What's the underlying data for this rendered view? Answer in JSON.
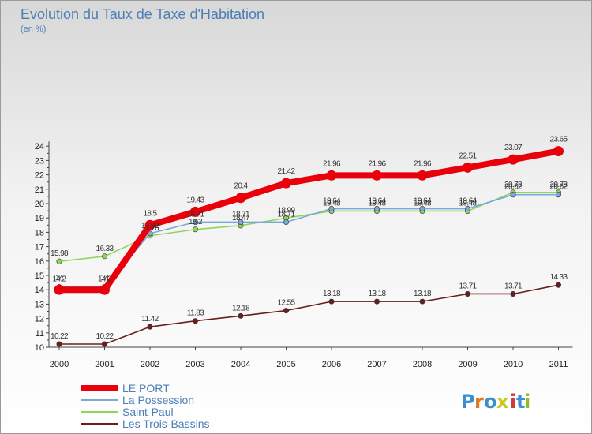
{
  "chart_data": {
    "type": "line",
    "title": "Evolution du Taux de Taxe d'Habitation",
    "subtitle": "(en %)",
    "x": [
      "2000",
      "2001",
      "2002",
      "2003",
      "2004",
      "2005",
      "2006",
      "2007",
      "2008",
      "2009",
      "2010",
      "2011"
    ],
    "ylim": [
      10,
      24
    ],
    "yticks": [
      "10",
      "11",
      "12",
      "13",
      "14",
      "15",
      "16",
      "17",
      "18",
      "19",
      "20",
      "21",
      "22",
      "23",
      "24"
    ],
    "grid": false,
    "legend_position": "bottom-left",
    "series": [
      {
        "name": "Les Trois-Bassins",
        "color": "#6b1e1e",
        "values": [
          10.22,
          10.22,
          11.42,
          11.83,
          12.18,
          12.55,
          13.18,
          13.18,
          13.18,
          13.71,
          13.71,
          14.33
        ],
        "labels": [
          "10.22",
          "10.22",
          "11.42",
          "11.83",
          "12.18",
          "12.55",
          "13.18",
          "13.18",
          "13.18",
          "13.71",
          "13.71",
          "14.33"
        ]
      },
      {
        "name": "Saint-Paul",
        "color": "#8ed65a",
        "values": [
          15.98,
          16.33,
          17.76,
          18.2,
          18.47,
          18.99,
          19.48,
          19.48,
          19.48,
          19.48,
          20.78,
          20.78
        ],
        "labels": [
          "15.98",
          "16.33",
          "17.76",
          "18.2",
          "18.47",
          "18.99",
          "19.48",
          "19.48",
          "19.48",
          "19.48",
          "20.78",
          "20.78"
        ]
      },
      {
        "name": "La Possession",
        "color": "#7aa8d8",
        "values": [
          14.2,
          14.2,
          17.92,
          18.71,
          18.71,
          18.71,
          19.64,
          19.64,
          19.64,
          19.64,
          20.62,
          20.62
        ],
        "labels": [
          "14.2",
          "14.2",
          "17.92",
          "18.71",
          "18.71",
          "18.71",
          "19.64",
          "19.64",
          "19.64",
          "19.64",
          "20.62",
          "20.62"
        ]
      },
      {
        "name": "LE PORT",
        "color": "#e8000b",
        "values": [
          14.0,
          14.0,
          18.5,
          19.43,
          20.4,
          21.42,
          21.96,
          21.96,
          21.96,
          22.51,
          23.07,
          23.65
        ],
        "labels": [
          "14",
          "14",
          "18.5",
          "19.43",
          "20.4",
          "21.42",
          "21.96",
          "21.96",
          "21.96",
          "22.51",
          "23.07",
          "23.65"
        ]
      }
    ],
    "legend": [
      "LE PORT",
      "La Possession",
      "Saint-Paul",
      "Les Trois-Bassins"
    ]
  },
  "logo": {
    "letters": [
      "P",
      "r",
      "o",
      "x",
      "i",
      "t",
      "i"
    ],
    "colors": [
      "#3a8fd0",
      "#e07a22",
      "#3a8fd0",
      "#c8c820",
      "#d03a3a",
      "#3a8fd0",
      "#8cbf26"
    ]
  }
}
